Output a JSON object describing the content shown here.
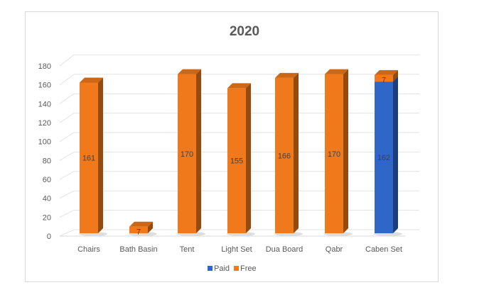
{
  "chart_data": {
    "type": "bar",
    "stacked": true,
    "title": "2020",
    "categories": [
      "Chairs",
      "Bath Basin",
      "Tent",
      "Light Set",
      "Dua Board",
      "Qabr",
      "Caben Set"
    ],
    "series": [
      {
        "name": "Paid",
        "color": "#2e67c8",
        "values": [
          0,
          0,
          0,
          0,
          0,
          0,
          162
        ]
      },
      {
        "name": "Free",
        "color": "#f07a1b",
        "values": [
          161,
          7,
          170,
          155,
          166,
          170,
          7
        ]
      }
    ],
    "yticks": [
      "0",
      "20",
      "40",
      "60",
      "80",
      "100",
      "120",
      "140",
      "160",
      "180"
    ],
    "ylim": [
      0,
      180
    ],
    "grid": true,
    "legend": "bottom"
  }
}
